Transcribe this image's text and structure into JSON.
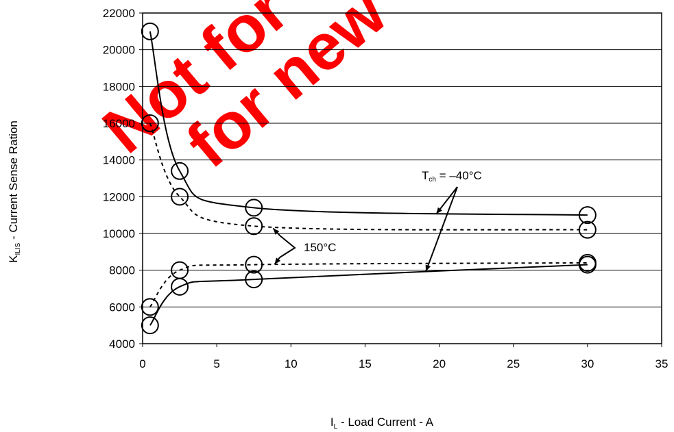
{
  "chart_data": {
    "type": "scatter",
    "xlabel": {
      "main": "I",
      "sub": "L",
      "rest": " - Load Current - A"
    },
    "ylabel": {
      "main": "K",
      "sub": "ILIS",
      "rest": " - Current Sense Ration"
    },
    "xlim": [
      0,
      35
    ],
    "ylim": [
      4000,
      22000
    ],
    "x_ticks": [
      0,
      5,
      10,
      15,
      20,
      25,
      30,
      35
    ],
    "y_ticks": [
      4000,
      6000,
      8000,
      10000,
      12000,
      14000,
      16000,
      18000,
      20000,
      22000
    ],
    "grid": "horizontal",
    "series": [
      {
        "line": "solid",
        "x": [
          0.5,
          2.5,
          7.5,
          30
        ],
        "y": [
          21000,
          13400,
          11400,
          11000
        ]
      },
      {
        "line": "dashed",
        "x": [
          0.5,
          2.5,
          7.5,
          30
        ],
        "y": [
          16000,
          12000,
          10400,
          10200
        ]
      },
      {
        "line": "dashed",
        "x": [
          0.5,
          2.5,
          7.5,
          30
        ],
        "y": [
          6000,
          8000,
          8300,
          8400
        ]
      },
      {
        "line": "solid",
        "x": [
          0.5,
          2.5,
          7.5,
          30
        ],
        "y": [
          5000,
          7100,
          7500,
          8300
        ]
      }
    ],
    "annotations": [
      {
        "text_main": "T",
        "text_sub": "ch",
        "text_rest": " = –40°C"
      },
      {
        "text": "150°C"
      }
    ]
  },
  "watermark": {
    "line1": "Not for",
    "line2": "for new"
  }
}
